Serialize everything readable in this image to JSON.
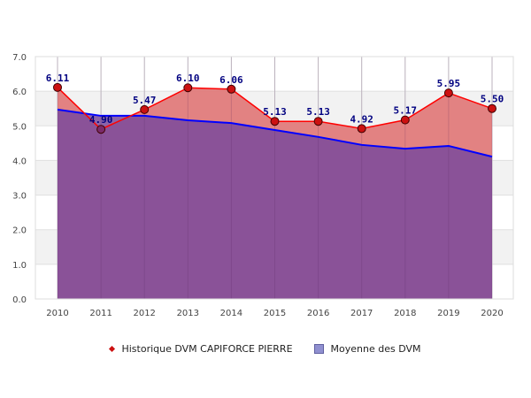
{
  "chart_data": {
    "type": "area",
    "title": "",
    "xlabel": "",
    "ylabel": "",
    "ylim": [
      0,
      7
    ],
    "yticks": [
      "0.0",
      "1.0",
      "2.0",
      "3.0",
      "4.0",
      "5.0",
      "6.0",
      "7.0"
    ],
    "categories": [
      "2010",
      "2011",
      "2012",
      "2013",
      "2014",
      "2015",
      "2016",
      "2017",
      "2018",
      "2019",
      "2020"
    ],
    "series": [
      {
        "name": "Historique DVM CAPIFORCE PIERRE",
        "type": "line-area",
        "color": "#ff0000",
        "fill": "#e07b7b",
        "marker": "#cc1111",
        "values": [
          6.11,
          4.9,
          5.47,
          6.1,
          6.06,
          5.13,
          5.13,
          4.92,
          5.17,
          5.95,
          5.5
        ],
        "labels": [
          "6.11",
          "4.90",
          "5.47",
          "6.10",
          "6.06",
          "5.13",
          "5.13",
          "4.92",
          "5.17",
          "5.95",
          "5.50"
        ]
      },
      {
        "name": "Moyenne des DVM",
        "type": "line-area",
        "color": "#0000ff",
        "fill": "#7a4a9c",
        "values": [
          5.47,
          5.29,
          5.29,
          5.16,
          5.08,
          4.88,
          4.68,
          4.45,
          4.34,
          4.42,
          4.11
        ]
      }
    ],
    "grid": true,
    "legend_position": "bottom"
  },
  "legend": {
    "items": [
      {
        "label": "Historique DVM CAPIFORCE PIERRE"
      },
      {
        "label": "Moyenne des DVM"
      }
    ]
  }
}
